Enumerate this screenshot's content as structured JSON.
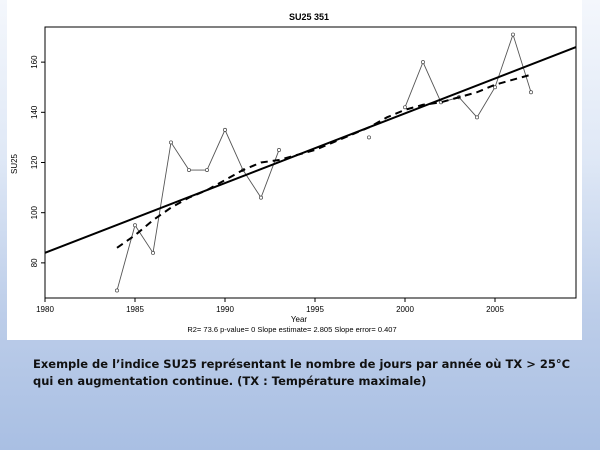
{
  "chart_data": {
    "type": "line",
    "title": "SU25    351",
    "xlabel": "Year",
    "ylabel": "SU25",
    "subtitle": "R2= 73.6  p-value= 0  Slope estimate= 2.805  Slope error= 0.407",
    "xlim": [
      1980,
      2009.5
    ],
    "ylim": [
      66,
      174
    ],
    "xticks": [
      1980,
      1985,
      1990,
      1995,
      2000,
      2005
    ],
    "yticks": [
      80,
      100,
      120,
      140,
      160
    ],
    "grid": false,
    "series": [
      {
        "style": "observed",
        "x": [
          1984,
          1985,
          1986,
          1987,
          1988,
          1989,
          1990,
          1991,
          1992,
          1993,
          1998,
          2000,
          2001,
          2002,
          2003,
          2004,
          2005,
          2006,
          2007
        ],
        "values": [
          69,
          95,
          84,
          128,
          117,
          117,
          133,
          117,
          106,
          125,
          130,
          142,
          160,
          144,
          146,
          138,
          150,
          171,
          148
        ]
      },
      {
        "style": "trend-line",
        "x": [
          1980,
          2009.5
        ],
        "values": [
          84,
          166
        ]
      },
      {
        "style": "smoothed",
        "x": [
          1984,
          1985,
          1986,
          1987,
          1988,
          1989,
          1990,
          1991,
          1992,
          1993,
          1994,
          1995,
          1996,
          1997,
          1998,
          1999,
          2000,
          2001,
          2002,
          2003,
          2004,
          2005,
          2006,
          2007
        ],
        "values": [
          86,
          91,
          97,
          102,
          106,
          109,
          113,
          117,
          120,
          121,
          123,
          125,
          128,
          131,
          134,
          138,
          141,
          143,
          144,
          146,
          148,
          151,
          153,
          155
        ]
      }
    ]
  },
  "caption": {
    "line1": "Exemple de l’indice  SU25 représentant le nombre de jours par année où TX > 25°C",
    "line2": "qui en augmentation continue. (TX : Température maximale)"
  }
}
